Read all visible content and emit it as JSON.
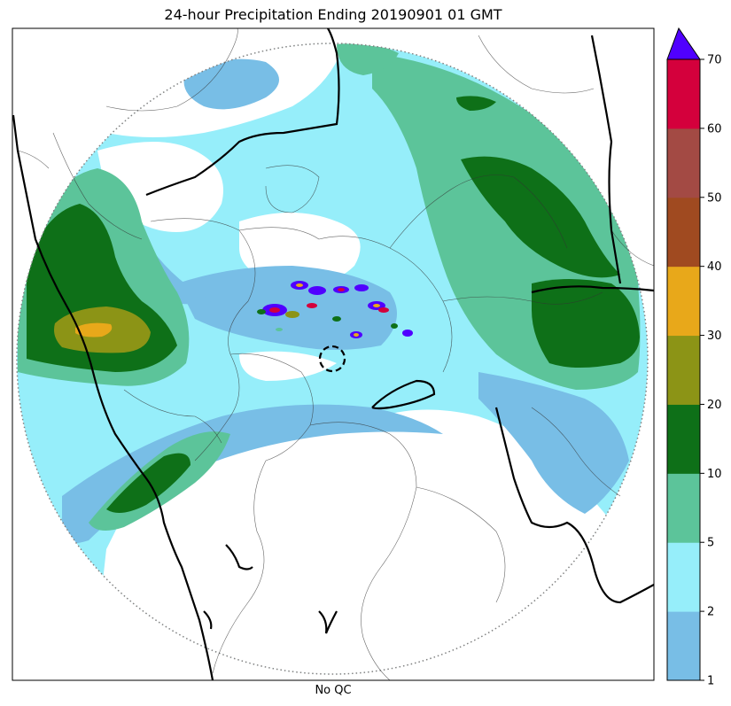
{
  "title": "24-hour Precipitation Ending 20190901 01 GMT",
  "xlabel": "No QC",
  "colorbar": {
    "extend": "max",
    "extend_color": "#5000ff",
    "levels": [
      1,
      2,
      5,
      10,
      20,
      30,
      40,
      50,
      60,
      70
    ],
    "tick_labels": [
      "1",
      "2",
      "5",
      "10",
      "20",
      "30",
      "40",
      "50",
      "60",
      "70"
    ],
    "colors": [
      "#78bee6",
      "#96eefa",
      "#5cc49a",
      "#0e7018",
      "#8c9416",
      "#e8a81a",
      "#a04a20",
      "#a34a44",
      "#d4003c"
    ]
  },
  "chart_data": {
    "type": "heatmap",
    "title": "24-hour Precipitation Ending 20190901 01 GMT",
    "xlabel": "No QC",
    "ylabel": "",
    "colorbar_levels": [
      1,
      2,
      5,
      10,
      20,
      30,
      40,
      50,
      60,
      70
    ],
    "colorbar_extend": "max",
    "radar_range_ring": true,
    "heavy_rain_cores": [
      {
        "area": "western coast",
        "approx_max": 35
      },
      {
        "area": "central radar area cells",
        "approx_max": 70
      },
      {
        "area": "eastern plateau",
        "approx_max": 20
      }
    ]
  }
}
